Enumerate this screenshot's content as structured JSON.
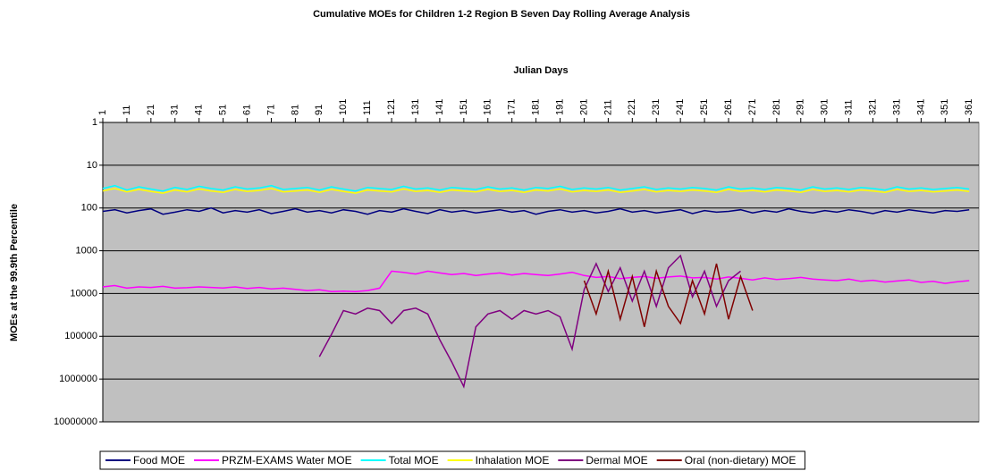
{
  "chart_data": {
    "type": "line",
    "title": "Cumulative MOEs for Children 1-2 Region B Seven Day Rolling Average Analysis",
    "x_label": "Julian Days",
    "y_label": "MOEs at the 99.9th Percentile",
    "log_scale": true,
    "y_inverted": true,
    "grid": true,
    "x_axis_position": "top",
    "legend_position": "bottom",
    "plot_background": "#c0c0c0",
    "xlim": [
      1,
      365
    ],
    "xticks": [
      1,
      11,
      21,
      31,
      41,
      51,
      61,
      71,
      81,
      91,
      101,
      111,
      121,
      131,
      141,
      151,
      161,
      171,
      181,
      191,
      201,
      211,
      221,
      231,
      241,
      251,
      261,
      271,
      281,
      291,
      301,
      311,
      321,
      331,
      341,
      351,
      361
    ],
    "ylim": [
      1,
      10000000
    ],
    "yticks": [
      1,
      10,
      100,
      1000,
      10000,
      100000,
      1000000,
      10000000
    ],
    "x": [
      1,
      6,
      11,
      16,
      21,
      26,
      31,
      36,
      41,
      46,
      51,
      56,
      61,
      66,
      71,
      76,
      81,
      86,
      91,
      96,
      101,
      106,
      111,
      116,
      121,
      126,
      131,
      136,
      141,
      146,
      151,
      156,
      161,
      166,
      171,
      176,
      181,
      186,
      191,
      196,
      201,
      206,
      211,
      216,
      221,
      226,
      231,
      236,
      241,
      246,
      251,
      256,
      261,
      266,
      271,
      276,
      281,
      286,
      291,
      296,
      301,
      306,
      311,
      316,
      321,
      326,
      331,
      336,
      341,
      346,
      351,
      356,
      361
    ],
    "series": [
      {
        "name": "Food MOE",
        "color": "#000080",
        "values": [
          120,
          110,
          130,
          115,
          105,
          140,
          125,
          110,
          120,
          100,
          130,
          115,
          125,
          110,
          135,
          120,
          105,
          125,
          115,
          130,
          110,
          120,
          140,
          115,
          125,
          105,
          120,
          135,
          110,
          125,
          115,
          130,
          120,
          110,
          125,
          115,
          140,
          120,
          110,
          125,
          115,
          130,
          120,
          105,
          125,
          115,
          130,
          120,
          110,
          135,
          115,
          125,
          120,
          110,
          130,
          115,
          125,
          105,
          120,
          130,
          115,
          125,
          110,
          120,
          135,
          115,
          125,
          110,
          120,
          130,
          115,
          120,
          110
        ]
      },
      {
        "name": "PRZM-EXAMS Water MOE",
        "color": "#ff00ff",
        "values": [
          7000,
          6500,
          7500,
          7000,
          7200,
          6800,
          7500,
          7300,
          7000,
          7200,
          7400,
          7000,
          7600,
          7200,
          7800,
          7500,
          8000,
          8500,
          8200,
          9000,
          8800,
          9000,
          8500,
          7500,
          3000,
          3200,
          3500,
          3000,
          3300,
          3600,
          3400,
          3800,
          3500,
          3300,
          3700,
          3400,
          3600,
          3800,
          3500,
          3200,
          3800,
          4200,
          4000,
          4500,
          4200,
          4000,
          4400,
          4100,
          3900,
          4300,
          4200,
          4600,
          4100,
          4400,
          4800,
          4300,
          4700,
          4500,
          4200,
          4600,
          4800,
          5000,
          4600,
          5200,
          4900,
          5400,
          5100,
          4800,
          5500,
          5200,
          5800,
          5300,
          5000
        ]
      },
      {
        "name": "Total MOE",
        "color": "#00ffff",
        "values": [
          35,
          30,
          38,
          32,
          36,
          40,
          33,
          37,
          31,
          35,
          38,
          32,
          36,
          34,
          30,
          37,
          35,
          33,
          38,
          32,
          36,
          40,
          33,
          35,
          37,
          31,
          36,
          34,
          38,
          33,
          35,
          37,
          32,
          36,
          34,
          38,
          33,
          35,
          31,
          37,
          34,
          36,
          33,
          38,
          35,
          32,
          37,
          34,
          36,
          33,
          35,
          38,
          32,
          36,
          34,
          37,
          33,
          35,
          38,
          32,
          36,
          34,
          37,
          33,
          35,
          38,
          32,
          36,
          34,
          37,
          35,
          33,
          36
        ]
      },
      {
        "name": "Inhalation MOE",
        "color": "#ffff00",
        "values": [
          40,
          35,
          42,
          37,
          41,
          45,
          38,
          42,
          36,
          40,
          43,
          37,
          41,
          39,
          35,
          42,
          40,
          38,
          43,
          37,
          41,
          45,
          38,
          40,
          42,
          36,
          41,
          39,
          43,
          38,
          40,
          42,
          37,
          41,
          39,
          43,
          38,
          40,
          36,
          42,
          39,
          41,
          38,
          43,
          40,
          37,
          42,
          39,
          41,
          38,
          40,
          43,
          37,
          41,
          39,
          42,
          38,
          40,
          43,
          37,
          41,
          39,
          42,
          38,
          40,
          43,
          37,
          41,
          39,
          42,
          40,
          38,
          41
        ]
      },
      {
        "name": "Dermal MOE",
        "color": "#800080",
        "values": [
          null,
          null,
          null,
          null,
          null,
          null,
          null,
          null,
          null,
          null,
          null,
          null,
          null,
          null,
          null,
          null,
          null,
          null,
          300000,
          90000,
          25000,
          30000,
          22000,
          25000,
          50000,
          25000,
          22000,
          30000,
          120000,
          400000,
          1500000,
          60000,
          30000,
          25000,
          40000,
          25000,
          30000,
          25000,
          35000,
          200000,
          8000,
          2000,
          9000,
          2500,
          15000,
          3000,
          20000,
          2500,
          1300,
          12000,
          3000,
          20000,
          5000,
          3000,
          null,
          null,
          null,
          null,
          null,
          null,
          null,
          null,
          null,
          null,
          null,
          null,
          null,
          null,
          null,
          null,
          null,
          null,
          null
        ]
      },
      {
        "name": "Oral (non-dietary) MOE",
        "color": "#800000",
        "values": [
          null,
          null,
          null,
          null,
          null,
          null,
          null,
          null,
          null,
          null,
          null,
          null,
          null,
          null,
          null,
          null,
          null,
          null,
          null,
          null,
          null,
          null,
          null,
          null,
          null,
          null,
          null,
          null,
          null,
          null,
          null,
          null,
          null,
          null,
          null,
          null,
          null,
          null,
          null,
          null,
          5000,
          30000,
          3000,
          40000,
          4000,
          60000,
          3000,
          20000,
          50000,
          5000,
          30000,
          2000,
          40000,
          4000,
          25000,
          null,
          null,
          null,
          null,
          null,
          null,
          null,
          null,
          null,
          null,
          null,
          null,
          null,
          null,
          null,
          null,
          null,
          null
        ]
      }
    ]
  }
}
